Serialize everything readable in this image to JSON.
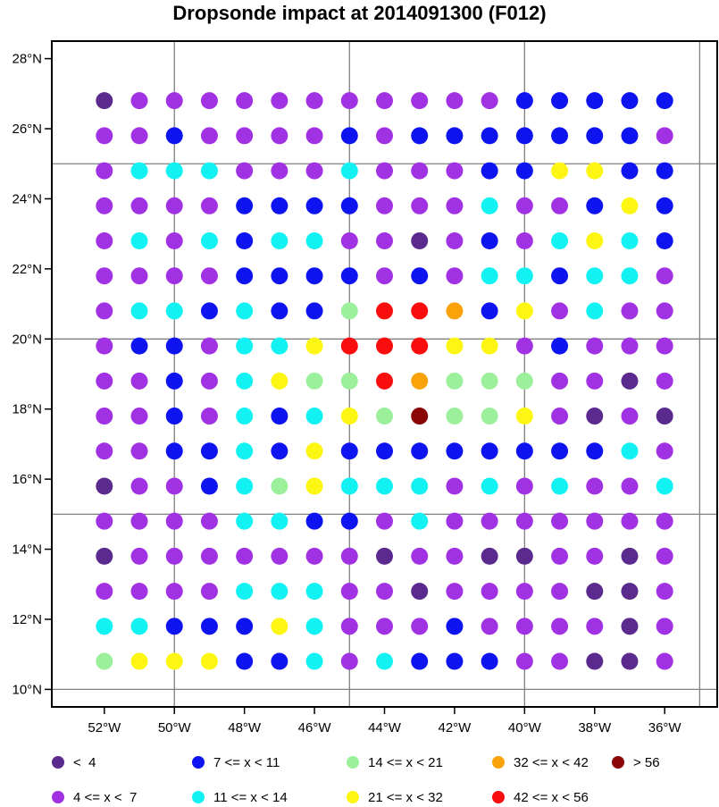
{
  "chart_data": {
    "type": "scatter",
    "title": "Dropsonde impact at 2014091300 (F012)",
    "x_axis": {
      "range": [
        -53.5,
        -34.5
      ],
      "ticks": [
        -52,
        -50,
        -48,
        -46,
        -44,
        -42,
        -40,
        -38,
        -36
      ],
      "tick_labels": [
        "52°W",
        "50°W",
        "48°W",
        "46°W",
        "44°W",
        "42°W",
        "40°W",
        "38°W",
        "36°W"
      ],
      "grid_lines": [
        -50,
        -45,
        -40,
        -35
      ]
    },
    "y_axis": {
      "range": [
        9.5,
        28.5
      ],
      "ticks": [
        10,
        12,
        14,
        16,
        18,
        20,
        22,
        24,
        26,
        28
      ],
      "tick_labels": [
        "10°N",
        "12°N",
        "14°N",
        "16°N",
        "18°N",
        "20°N",
        "22°N",
        "24°N",
        "26°N",
        "28°N"
      ],
      "grid_lines": [
        10,
        15,
        20,
        25
      ]
    },
    "grid": true,
    "lon": [
      -52,
      -51,
      -50,
      -49,
      -48,
      -47,
      -46,
      -45,
      -44,
      -43,
      -42,
      -41,
      -40,
      -39,
      -38,
      -37,
      -36
    ],
    "lat": [
      26.8,
      25.8,
      24.8,
      23.8,
      22.8,
      21.8,
      20.8,
      19.8,
      18.8,
      17.8,
      16.8,
      15.8,
      14.8,
      13.8,
      12.8,
      11.8,
      10.8
    ],
    "category_grid": [
      "01111111111122222",
      "11211112122222221",
      "13331113111225522",
      "11112222111311252",
      "13132331101213532",
      "11112222121332331",
      "13323224776251311",
      "12213357775512111",
      "11213544764441101",
      "11213235484451010",
      "11223252222222231",
      "01123453331313113",
      "11113322131111111",
      "01111111011001101",
      "11113331101111001",
      "33222531112111101",
      "45552231322211001"
    ],
    "categories": [
      {
        "label": "<  4",
        "color": "#5b2a8f"
      },
      {
        "label": "4 <= x <  7",
        "color": "#a132e3"
      },
      {
        "label": "7 <= x < 11",
        "color": "#0e14f0"
      },
      {
        "label": "11 <= x < 14",
        "color": "#12f2f2"
      },
      {
        "label": "14 <= x < 21",
        "color": "#9cf09c"
      },
      {
        "label": "21 <= x < 32",
        "color": "#fcf612"
      },
      {
        "label": "32 <= x < 42",
        "color": "#faa20a"
      },
      {
        "label": "42 <= x < 56",
        "color": "#fa0d0d"
      },
      {
        "label": "> 56",
        "color": "#8a0606"
      }
    ]
  }
}
